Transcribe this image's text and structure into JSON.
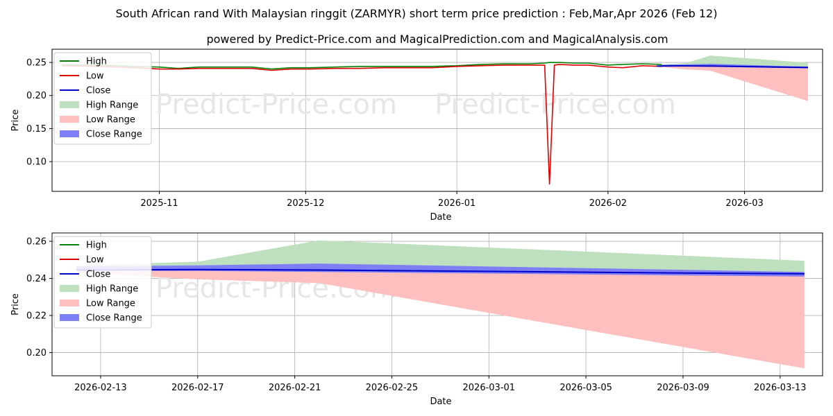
{
  "header": {
    "title": "South African rand With Malaysian ringgit (ZARMYR) short term price prediction : Feb,Mar,Apr 2026 (Feb 12)",
    "subtitle": "powered by Predict-Price.com and MagicalPrediction.com and MagicalAnalysis.com"
  },
  "watermark": "Predict-Price.com",
  "colors": {
    "high": "#008000",
    "low": "#dd0000",
    "close": "#0000cc",
    "high_range": "#bfe0bf",
    "low_range": "#ffbfbf",
    "close_range": "#7f7ff5"
  },
  "chart_data": [
    {
      "type": "line",
      "title": "",
      "xlabel": "Date",
      "ylabel": "Price",
      "xlim": [
        "2025-10-10",
        "2026-03-17"
      ],
      "ylim": [
        0.055,
        0.27
      ],
      "grid": true,
      "legend_position": "top-left",
      "x_ticks": [
        "2025-11",
        "2025-12",
        "2026-01",
        "2026-02",
        "2026-03"
      ],
      "y_ticks": [
        "0.10",
        "0.15",
        "0.20",
        "0.25"
      ],
      "legend": [
        "High",
        "Low",
        "Close",
        "High Range",
        "Low Range",
        "Close Range"
      ],
      "series": [
        {
          "name": "High",
          "x": [
            "2025-10-12",
            "2025-10-20",
            "2025-10-27",
            "2025-11-01",
            "2025-11-05",
            "2025-11-09",
            "2025-11-12",
            "2025-11-16",
            "2025-11-20",
            "2025-11-24",
            "2025-11-28",
            "2025-12-02",
            "2025-12-07",
            "2025-12-12",
            "2025-12-17",
            "2025-12-22",
            "2025-12-27",
            "2026-01-01",
            "2026-01-06",
            "2026-01-11",
            "2026-01-16",
            "2026-01-19",
            "2026-01-20",
            "2026-01-22",
            "2026-01-25",
            "2026-01-28",
            "2026-02-01",
            "2026-02-04",
            "2026-02-08",
            "2026-02-12"
          ],
          "values": [
            0.246,
            0.246,
            0.244,
            0.243,
            0.241,
            0.243,
            0.243,
            0.243,
            0.243,
            0.24,
            0.242,
            0.242,
            0.243,
            0.244,
            0.244,
            0.244,
            0.244,
            0.245,
            0.247,
            0.248,
            0.248,
            0.249,
            0.25,
            0.25,
            0.249,
            0.249,
            0.246,
            0.247,
            0.248,
            0.247
          ]
        },
        {
          "name": "Low",
          "x": [
            "2025-10-12",
            "2025-10-20",
            "2025-10-27",
            "2025-11-01",
            "2025-11-05",
            "2025-11-09",
            "2025-11-12",
            "2025-11-16",
            "2025-11-20",
            "2025-11-24",
            "2025-11-28",
            "2025-12-02",
            "2025-12-07",
            "2025-12-12",
            "2025-12-17",
            "2025-12-22",
            "2025-12-27",
            "2026-01-01",
            "2026-01-06",
            "2026-01-11",
            "2026-01-16",
            "2026-01-19",
            "2026-01-20",
            "2026-01-21",
            "2026-01-22",
            "2026-01-25",
            "2026-01-28",
            "2026-02-01",
            "2026-02-04",
            "2026-02-08",
            "2026-02-12"
          ],
          "values": [
            0.245,
            0.244,
            0.242,
            0.24,
            0.24,
            0.241,
            0.241,
            0.241,
            0.241,
            0.238,
            0.24,
            0.24,
            0.241,
            0.241,
            0.242,
            0.242,
            0.242,
            0.244,
            0.245,
            0.246,
            0.246,
            0.246,
            0.066,
            0.246,
            0.247,
            0.246,
            0.246,
            0.243,
            0.242,
            0.245,
            0.244
          ]
        },
        {
          "name": "Close",
          "x": [
            "2026-02-11",
            "2026-02-16",
            "2026-02-22",
            "2026-03-01",
            "2026-03-08",
            "2026-03-14"
          ],
          "values": [
            0.2445,
            0.2448,
            0.2445,
            0.2438,
            0.243,
            0.2425
          ]
        },
        {
          "name": "High Range",
          "x": [
            "2026-02-12",
            "2026-02-17",
            "2026-02-22",
            "2026-03-14"
          ],
          "lower": [
            0.2445,
            0.2448,
            0.2445,
            0.2425
          ],
          "upper": [
            0.247,
            0.249,
            0.2605,
            0.2495
          ]
        },
        {
          "name": "Low Range",
          "x": [
            "2026-02-12",
            "2026-02-17",
            "2026-02-22",
            "2026-03-14"
          ],
          "lower": [
            0.243,
            0.2395,
            0.2375,
            0.1915
          ],
          "upper": [
            0.2445,
            0.2448,
            0.2445,
            0.2425
          ]
        },
        {
          "name": "Close Range",
          "x": [
            "2026-02-12",
            "2026-02-17",
            "2026-02-22",
            "2026-03-14"
          ],
          "lower": [
            0.244,
            0.244,
            0.2435,
            0.241
          ],
          "upper": [
            0.2465,
            0.247,
            0.248,
            0.2435
          ]
        }
      ]
    },
    {
      "type": "line",
      "title": "",
      "xlabel": "Date",
      "ylabel": "Price",
      "xlim": [
        "2026-02-11T00:00",
        "2026-03-14T18:00"
      ],
      "ylim": [
        0.1875,
        0.2645
      ],
      "grid": true,
      "legend_position": "top-left",
      "x_ticks": [
        "2026-02-13",
        "2026-02-17",
        "2026-02-21",
        "2026-02-25",
        "2026-03-01",
        "2026-03-05",
        "2026-03-09",
        "2026-03-13"
      ],
      "y_ticks": [
        "0.20",
        "0.22",
        "0.24",
        "0.26"
      ],
      "legend": [
        "High",
        "Low",
        "Close",
        "High Range",
        "Low Range",
        "Close Range"
      ],
      "series": [
        {
          "name": "Close",
          "x": [
            "2026-02-12",
            "2026-02-17",
            "2026-02-22",
            "2026-03-01",
            "2026-03-08",
            "2026-03-14"
          ],
          "values": [
            0.2445,
            0.2448,
            0.2445,
            0.2438,
            0.243,
            0.2425
          ]
        },
        {
          "name": "High Range",
          "x": [
            "2026-02-12",
            "2026-02-17",
            "2026-02-22",
            "2026-03-14"
          ],
          "lower": [
            0.2445,
            0.2448,
            0.2445,
            0.2425
          ],
          "upper": [
            0.247,
            0.249,
            0.2605,
            0.2495
          ]
        },
        {
          "name": "Low Range",
          "x": [
            "2026-02-12",
            "2026-02-17",
            "2026-02-22",
            "2026-03-14"
          ],
          "lower": [
            0.243,
            0.2395,
            0.2375,
            0.1915
          ],
          "upper": [
            0.2445,
            0.2448,
            0.2445,
            0.2425
          ]
        },
        {
          "name": "Close Range",
          "x": [
            "2026-02-12",
            "2026-02-17",
            "2026-02-22",
            "2026-03-14"
          ],
          "lower": [
            0.244,
            0.244,
            0.2435,
            0.241
          ],
          "upper": [
            0.2465,
            0.247,
            0.248,
            0.2435
          ]
        }
      ]
    }
  ]
}
